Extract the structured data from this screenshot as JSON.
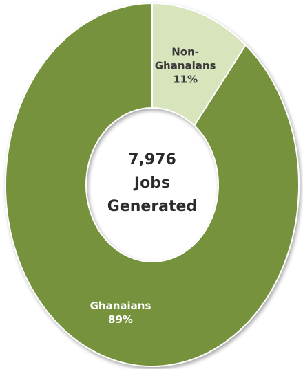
{
  "chart_data": {
    "type": "pie",
    "variant": "donut",
    "slices": [
      {
        "label_lines": [
          "Non-",
          "Ghanaians"
        ],
        "value_label": "11%",
        "value": 11,
        "color": "#d8e4bc",
        "text_color": "#3a3a3a"
      },
      {
        "label_lines": [
          "Ghanaians"
        ],
        "value_label": "89%",
        "value": 89,
        "color": "#76923c",
        "text_color": "#ffffff"
      }
    ],
    "center_lines": [
      "7,976",
      "Jobs",
      "Generated"
    ],
    "start": "top, clockwise",
    "legend": "none"
  }
}
